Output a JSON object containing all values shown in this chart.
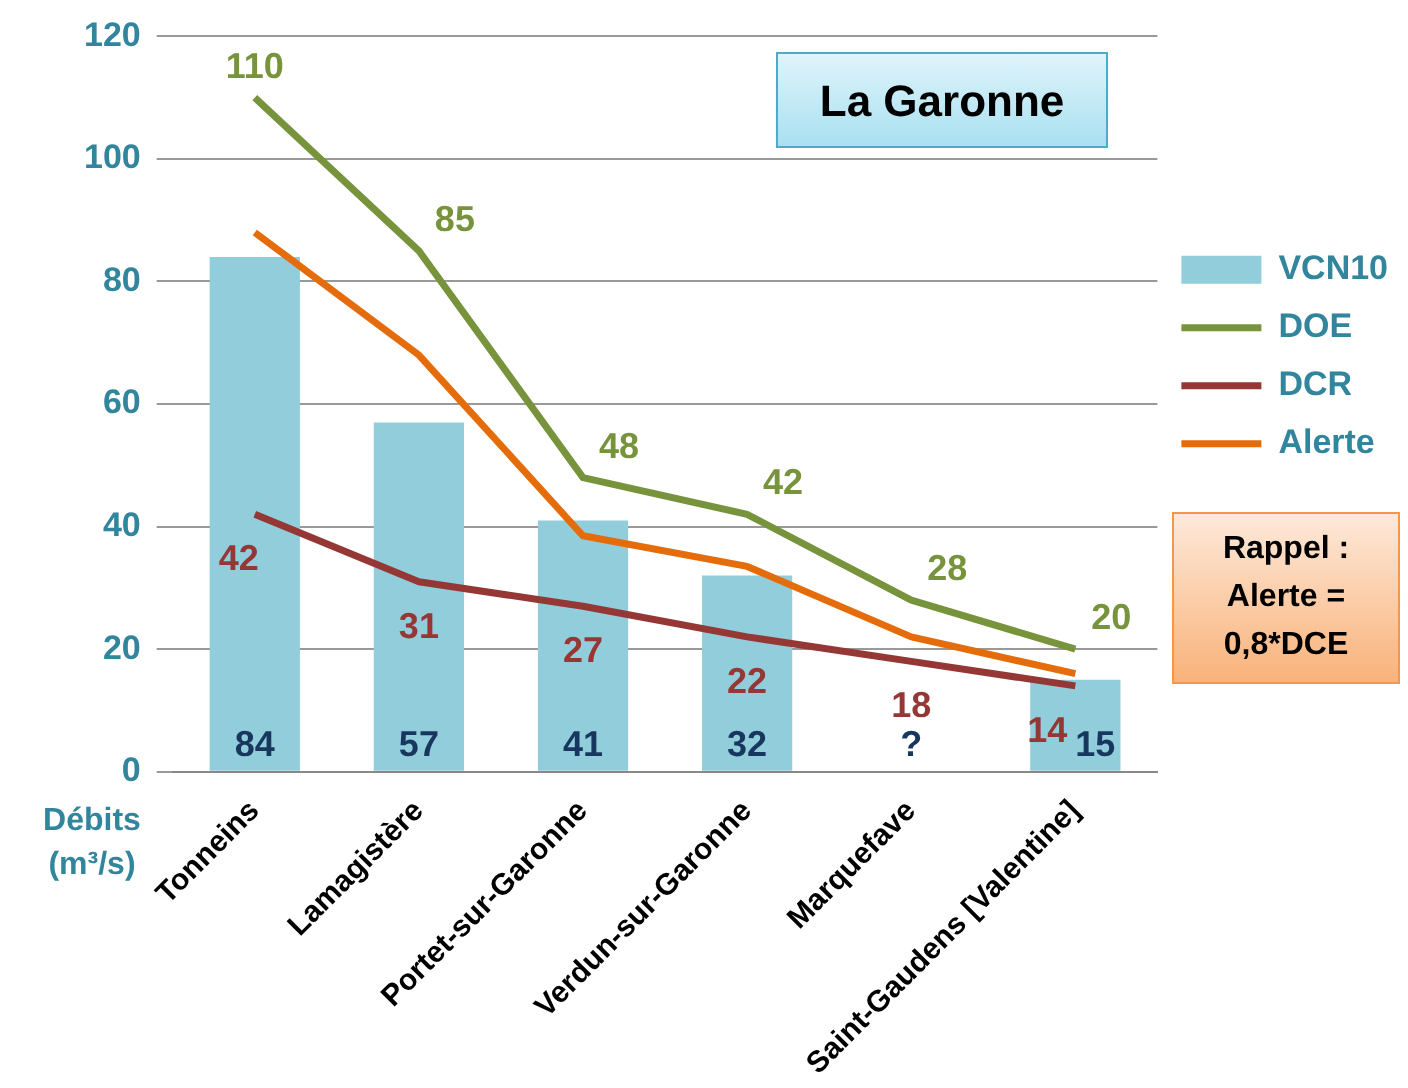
{
  "chart_data": {
    "type": "bar",
    "title": "La Garonne",
    "ylabel": "Débits (m³/s)",
    "categories": [
      "Tonneins",
      "Lamagistère",
      "Portet-sur-Garonne",
      "Verdun-sur-Garonne",
      "Marquefave",
      "Saint-Gaudens [Valentine]"
    ],
    "series": [
      {
        "name": "VCN10",
        "color": "#92cddc",
        "values": [
          84,
          57,
          41,
          32,
          null,
          15
        ],
        "value_labels": [
          "84",
          "57",
          "41",
          "32",
          "?",
          "15"
        ]
      },
      {
        "name": "DOE",
        "type": "line",
        "color": "#77933c",
        "values": [
          110,
          85,
          48,
          42,
          28,
          20
        ],
        "value_labels": [
          "110",
          "85",
          "48",
          "42",
          "28",
          "20"
        ]
      },
      {
        "name": "DCR",
        "type": "line",
        "color": "#953735",
        "values": [
          42,
          31,
          27,
          22,
          18,
          14
        ],
        "value_labels": [
          "42",
          "31",
          "27",
          "22",
          "18",
          "14"
        ]
      },
      {
        "name": "Alerte",
        "type": "line",
        "color": "#e46c0a",
        "values": [
          88,
          68,
          38.5,
          33.5,
          22,
          16
        ]
      }
    ],
    "ylim": [
      0,
      120
    ],
    "yticks": [
      0,
      20,
      40,
      60,
      80,
      100,
      120
    ],
    "grid": "y",
    "legend": "right",
    "marker": "none",
    "annotations": [
      "Rappel : Alerte = 0,8*DCE"
    ]
  }
}
